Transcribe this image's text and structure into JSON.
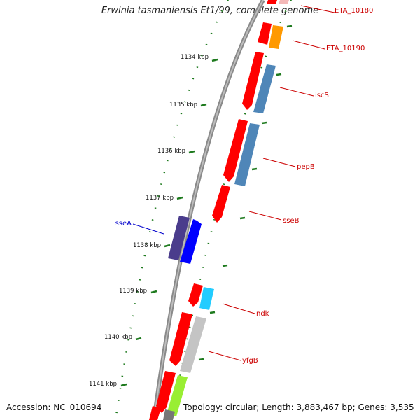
{
  "title": "Erwinia tasmaniensis Et1/99, complete genome",
  "footer": {
    "accession": "Accession: NC_010694",
    "topology": "Topology: circular; Length: 3,883,467 bp; Genes: 3,535"
  },
  "colors": {
    "backbone": "#8a8a8a",
    "tick": "#1e7a1e",
    "red_label": "#cc0000",
    "blue_label": "#0000cc",
    "gene_red": "#ff0000",
    "gene_orange": "#ff9900",
    "gene_steelblue": "#4f86b8",
    "gene_navy": "#4a3c8c",
    "gene_blue": "#0000ff",
    "gene_cyan": "#22ccff",
    "gene_grey": "#c4c4c4",
    "gene_lime": "#99ee33",
    "gene_dkgrey": "#777777",
    "gene_pink": "#f4b8b8"
  },
  "kbp_labels": [
    "1134 kbp",
    "1135 kbp",
    "1136 kbp",
    "1137 kbp",
    "1138 kbp",
    "1139 kbp",
    "1140 kbp",
    "1141 kbp"
  ],
  "gene_labels": [
    "ETA_10180",
    "ETA_10190",
    "iscS",
    "pepB",
    "sseB",
    "sseA",
    "ndk",
    "yfgB"
  ]
}
